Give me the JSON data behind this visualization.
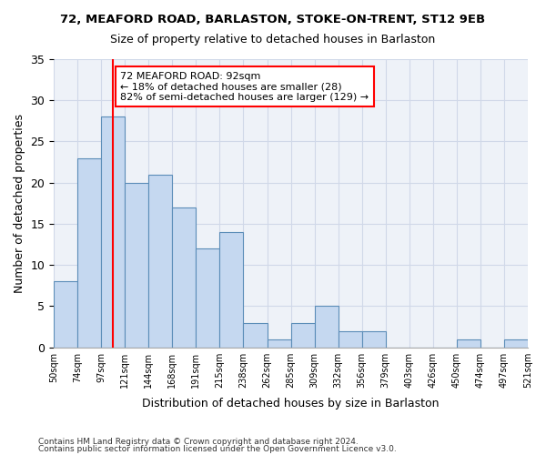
{
  "title1": "72, MEAFORD ROAD, BARLASTON, STOKE-ON-TRENT, ST12 9EB",
  "title2": "Size of property relative to detached houses in Barlaston",
  "xlabel": "Distribution of detached houses by size in Barlaston",
  "ylabel": "Number of detached properties",
  "bar_values": [
    8,
    23,
    28,
    20,
    21,
    17,
    12,
    14,
    3,
    1,
    3,
    5,
    2,
    2,
    0,
    0,
    0,
    1,
    0,
    1
  ],
  "bar_labels": [
    "50sqm",
    "74sqm",
    "97sqm",
    "121sqm",
    "144sqm",
    "168sqm",
    "191sqm",
    "215sqm",
    "238sqm",
    "262sqm",
    "285sqm",
    "309sqm",
    "332sqm",
    "356sqm",
    "379sqm",
    "403sqm",
    "426sqm",
    "450sqm",
    "474sqm",
    "497sqm",
    "521sqm"
  ],
  "bar_color": "#c5d8f0",
  "bar_edge_color": "#5b8db8",
  "reference_line_x": 2,
  "reference_line_color": "red",
  "annotation_text": "72 MEAFORD ROAD: 92sqm\n← 18% of detached houses are smaller (28)\n82% of semi-detached houses are larger (129) →",
  "annotation_box_color": "white",
  "annotation_box_edge_color": "red",
  "ylim": [
    0,
    35
  ],
  "yticks": [
    0,
    5,
    10,
    15,
    20,
    25,
    30,
    35
  ],
  "grid_color": "#d0d8e8",
  "background_color": "#eef2f8",
  "footer1": "Contains HM Land Registry data © Crown copyright and database right 2024.",
  "footer2": "Contains public sector information licensed under the Open Government Licence v3.0."
}
